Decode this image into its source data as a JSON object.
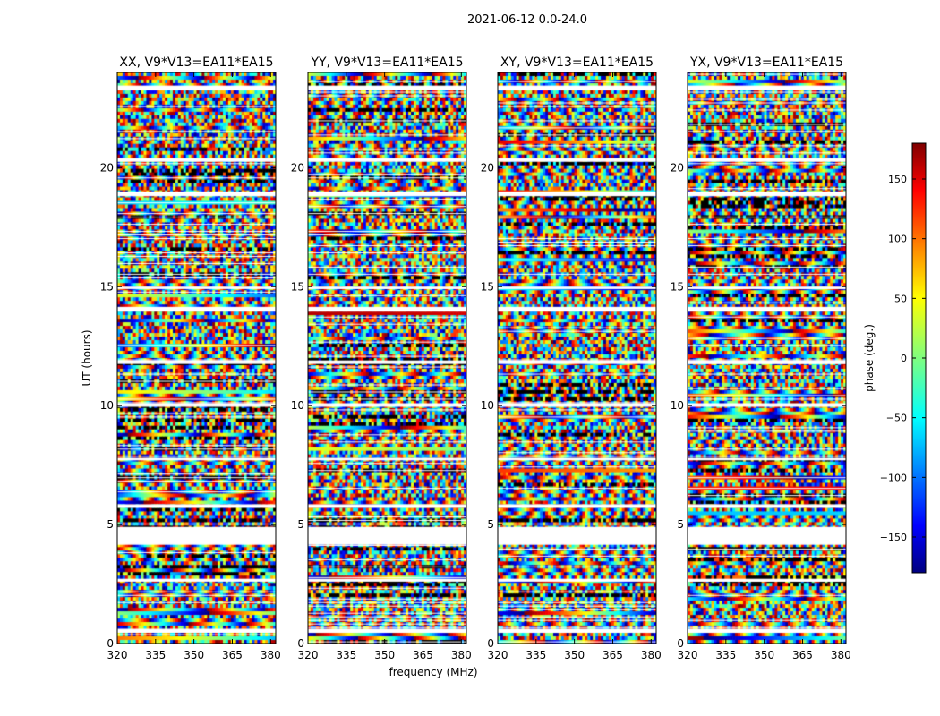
{
  "figure": {
    "suptitle": "2021-06-12 0.0-24.0"
  },
  "chart_data": {
    "type": "heatmap",
    "panels": [
      {
        "title": "XX, V9*V13=EA11*EA15"
      },
      {
        "title": "YY, V9*V13=EA11*EA15"
      },
      {
        "title": "XY, V9*V13=EA11*EA15"
      },
      {
        "title": "YX, V9*V13=EA11*EA15"
      }
    ],
    "xlabel": "frequency (MHz)",
    "ylabel": "UT (hours)",
    "xlim": [
      320,
      382
    ],
    "ylim": [
      0,
      24
    ],
    "xticks": [
      320,
      335,
      350,
      365,
      380
    ],
    "yticks": [
      0,
      5,
      10,
      15,
      20
    ],
    "colorbar": {
      "label": "phase (deg.)",
      "range": [
        -180,
        180
      ],
      "ticks": [
        150,
        100,
        50,
        0,
        -50,
        -100,
        -150
      ],
      "colormap": "jet",
      "colors": [
        "#00007f",
        "#0000ff",
        "#00ffff",
        "#7fff7f",
        "#ffff00",
        "#ff0000",
        "#7f0000"
      ]
    },
    "flagged_bands_hours": [
      [
        0.45,
        0.62
      ],
      [
        2.6,
        2.72
      ],
      [
        4.15,
        4.9
      ],
      [
        5.7,
        5.85
      ],
      [
        7.7,
        7.8
      ],
      [
        9.95,
        10.1
      ],
      [
        11.75,
        11.9
      ],
      [
        13.95,
        14.15
      ],
      [
        14.9,
        15.0
      ],
      [
        18.8,
        19.0
      ],
      [
        20.25,
        20.4
      ],
      [
        23.25,
        23.45
      ]
    ]
  }
}
